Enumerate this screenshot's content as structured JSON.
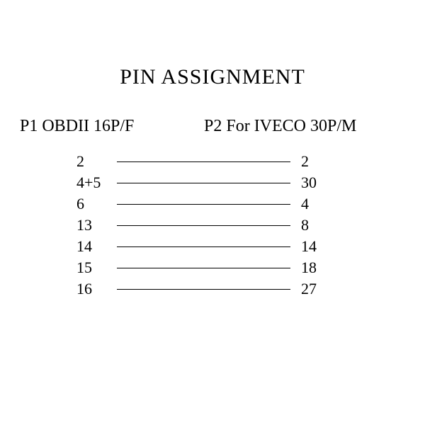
{
  "title": "PIN ASSIGNMENT",
  "header_left": "P1 OBDII 16P/F",
  "header_right": "P2 For IVECO 30P/M",
  "text_color": "#000000",
  "background_color": "#ffffff",
  "line_color": "#000000",
  "title_fontsize": 30,
  "header_fontsize": 24,
  "row_fontsize": 22,
  "line_width": 1.5,
  "rows": [
    {
      "left": "2",
      "right": "2"
    },
    {
      "left": "4+5",
      "right": "30"
    },
    {
      "left": "6",
      "right": "4"
    },
    {
      "left": "13",
      "right": "8"
    },
    {
      "left": "14",
      "right": "14"
    },
    {
      "left": "15",
      "right": "18"
    },
    {
      "left": "16",
      "right": "27"
    }
  ]
}
